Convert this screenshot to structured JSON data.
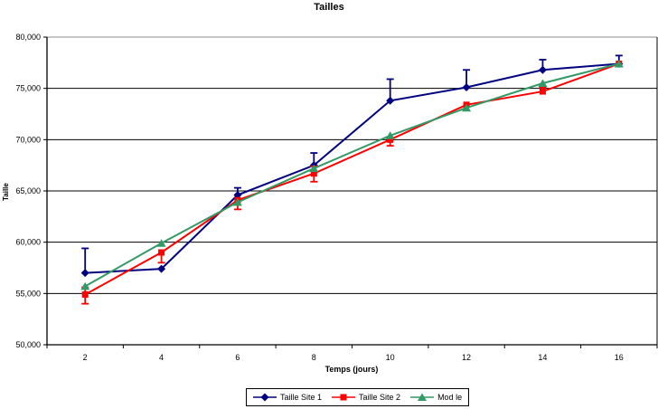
{
  "window": {
    "title": "Tailles"
  },
  "chart_data": {
    "type": "line",
    "title": "Tailles",
    "xlabel": "Temps (jours)",
    "ylabel": "Taille",
    "categories": [
      2,
      4,
      6,
      8,
      10,
      12,
      14,
      16
    ],
    "ylim": [
      50000,
      80000
    ],
    "ytick_step": 5000,
    "ytick_labels": [
      "50,000",
      "55,000",
      "60,000",
      "65,000",
      "70,000",
      "75,000",
      "80,000"
    ],
    "grid": true,
    "legend_position": "bottom",
    "colors": {
      "axis": "#000000",
      "gridline": "#000000",
      "plot_top_border": "#8c8c8c",
      "background": "#ffffff"
    },
    "series": [
      {
        "name": "Taille Site 1",
        "color": "#000080",
        "marker": "diamond",
        "values": [
          57000,
          57400,
          64600,
          67500,
          73800,
          75100,
          76800,
          77400
        ],
        "error_up": [
          2400,
          0,
          700,
          1200,
          2100,
          1700,
          1000,
          800
        ],
        "error_down": [
          0,
          0,
          0,
          0,
          0,
          0,
          0,
          0
        ]
      },
      {
        "name": "Taille Site 2",
        "color": "#ff0000",
        "marker": "square",
        "values": [
          54900,
          59000,
          64100,
          66700,
          70000,
          73400,
          74700,
          77400
        ],
        "error_up": [
          700,
          0,
          0,
          700,
          0,
          0,
          400,
          0
        ],
        "error_down": [
          900,
          1000,
          900,
          800,
          600,
          0,
          0,
          0
        ]
      },
      {
        "name": "Mod le",
        "color": "#339966",
        "marker": "triangle",
        "values": [
          55700,
          59900,
          63900,
          67200,
          70400,
          73100,
          75500,
          77400
        ],
        "error_up": [
          0,
          0,
          0,
          0,
          0,
          0,
          0,
          0
        ],
        "error_down": [
          0,
          0,
          0,
          0,
          0,
          0,
          0,
          0
        ]
      }
    ]
  }
}
